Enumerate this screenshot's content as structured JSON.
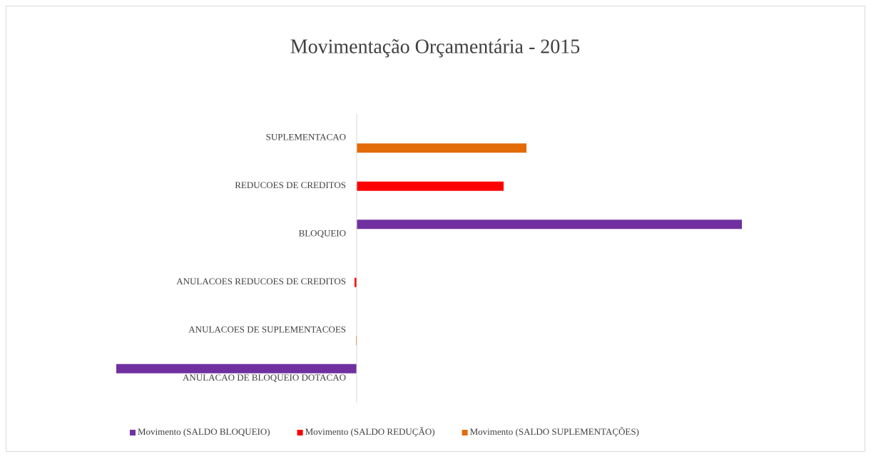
{
  "chart_data": {
    "type": "hbar",
    "title": "Movimentação Orçamentária - 2015",
    "categories": [
      "SUPLEMENTACAO",
      "REDUCOES DE CREDITOS",
      "BLOQUEIO",
      "ANULACOES REDUCOES DE CREDITOS",
      "ANULACOES DE SUPLEMENTACOES",
      "ANULACAO DE BLOQUEIO DOTACAO"
    ],
    "series": [
      {
        "name": "Movimento (SALDO BLOQUEIO)",
        "color": "#7030a0",
        "values": [
          null,
          null,
          540,
          null,
          null,
          -337
        ]
      },
      {
        "name": "Movimento (SALDO REDUÇÃO)",
        "color": "#ff0000",
        "values": [
          null,
          206,
          null,
          -3,
          null,
          null
        ]
      },
      {
        "name": "Movimento (SALDO SUPLEMENTAÇÕES)",
        "color": "#e36c09",
        "values": [
          238,
          null,
          null,
          null,
          -1,
          null
        ]
      }
    ],
    "xlim": [
      -340,
      545
    ],
    "legend": "bottom"
  }
}
